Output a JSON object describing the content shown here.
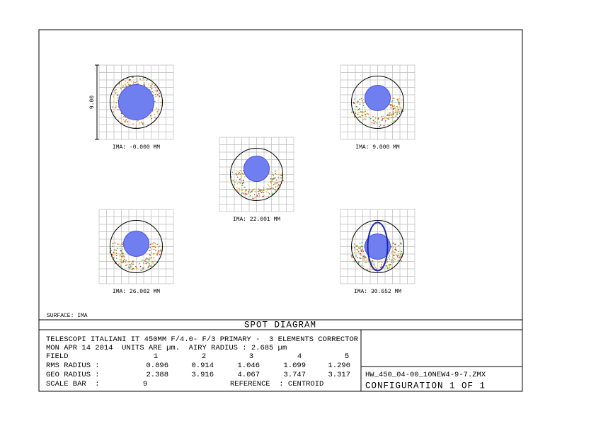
{
  "surface": "SURFACE: IMA",
  "title": "SPOT DIAGRAM",
  "scale_label": "9.00",
  "panels": [
    {
      "label": "IMA: -0.000 MM"
    },
    {
      "label": "IMA: 9.000 MM"
    },
    {
      "label": "IMA: 22.001 MM"
    },
    {
      "label": "IMA: 26.002 MM"
    },
    {
      "label": "IMA: 30.652 MM"
    }
  ],
  "info": {
    "line1": "TELESCOPI ITALIANI IT 450MM F/4.0- F/3 PRIMARY -  3 ELEMENTS CORRECTOR",
    "line2": "MON APR 14 2014  UNITS ARE µm.  AIRY RADIUS : 2.685 µm"
  },
  "table": {
    "field_label": "FIELD",
    "fields": [
      "1",
      "2",
      "3",
      "4",
      "5"
    ],
    "rows": [
      {
        "label": "RMS RADIUS :",
        "values": [
          "0.896",
          "0.914",
          "1.046",
          "1.099",
          "1.290"
        ]
      },
      {
        "label": "GEO RADIUS :",
        "values": [
          "2.388",
          "3.916",
          "4.067",
          "3.747",
          "3.317"
        ]
      }
    ],
    "scale_bar_label": "SCALE BAR  :",
    "scale_bar": "9",
    "reference": "REFERENCE  : CENTROID"
  },
  "file": "HW_450_04-00_10NEW4-9-7.ZMX",
  "configuration": "CONFIGURATION 1 OF 1"
}
